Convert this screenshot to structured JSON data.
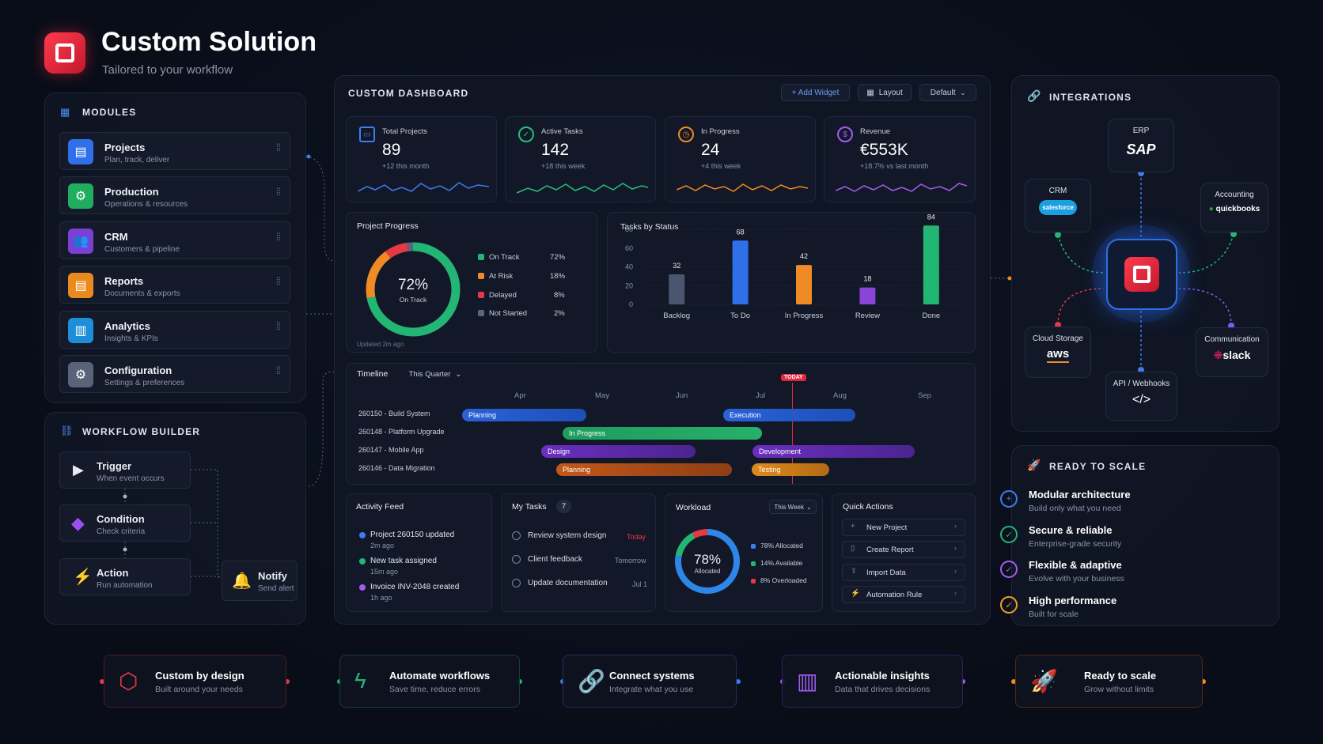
{
  "header": {
    "title": "Custom Solution",
    "subtitle": "Tailored to your workflow"
  },
  "modules": {
    "title": "MODULES",
    "items": [
      {
        "label": "Projects",
        "desc": "Plan, track, deliver"
      },
      {
        "label": "Production",
        "desc": "Operations & resources"
      },
      {
        "label": "CRM",
        "desc": "Customers & pipeline"
      },
      {
        "label": "Reports",
        "desc": "Documents & exports"
      },
      {
        "label": "Analytics",
        "desc": "Insights & KPIs"
      },
      {
        "label": "Configuration",
        "desc": "Settings & preferences"
      }
    ]
  },
  "workflow": {
    "title": "WORKFLOW BUILDER",
    "steps": [
      {
        "label": "Trigger",
        "desc": "When event occurs"
      },
      {
        "label": "Condition",
        "desc": "Check criteria"
      },
      {
        "label": "Action",
        "desc": "Run automation"
      },
      {
        "label": "Notify",
        "desc": "Send alert"
      }
    ]
  },
  "dashboard": {
    "title": "CUSTOM DASHBOARD",
    "add_widget": "+ Add Widget",
    "layout": "Layout",
    "default": "Default",
    "kpis": [
      {
        "label": "Total Projects",
        "value": "89",
        "sub": "+12 this month",
        "color": "#3e7cf0"
      },
      {
        "label": "Active Tasks",
        "value": "142",
        "sub": "+18 this week",
        "color": "#28c07a"
      },
      {
        "label": "In Progress",
        "value": "24",
        "sub": "+4 this week",
        "color": "#f08a24"
      },
      {
        "label": "Revenue",
        "value": "€553K",
        "sub": "+18.7% vs last month",
        "color": "#a45cf0"
      }
    ],
    "progress": {
      "title": "Project Progress",
      "center_value": "72%",
      "center_label": "On Track",
      "updated": "Updated 2m ago",
      "legend": [
        {
          "label": "On Track",
          "value": "72%",
          "color": "#22b573"
        },
        {
          "label": "At Risk",
          "value": "18%",
          "color": "#f08a24"
        },
        {
          "label": "Delayed",
          "value": "8%",
          "color": "#e53946"
        },
        {
          "label": "Not Started",
          "value": "2%",
          "color": "#5a6580"
        }
      ]
    },
    "timeline": {
      "title": "Timeline",
      "range": "This Quarter",
      "today": "TODAY",
      "months": [
        "Apr",
        "May",
        "Jun",
        "Jul",
        "Aug",
        "Sep"
      ],
      "rows": [
        "260150 - Build System",
        "260148 - Platform Upgrade",
        "260147 - Mobile App",
        "260146 - Data Migration"
      ],
      "bars": [
        "Planning",
        "Execution",
        "In Progress",
        "Design",
        "Development",
        "Planning",
        "Testing"
      ]
    },
    "activity": {
      "title": "Activity Feed",
      "items": [
        {
          "text": "Project 260150 updated",
          "when": "2m ago"
        },
        {
          "text": "New task assigned",
          "when": "15m ago"
        },
        {
          "text": "Invoice INV-2048 created",
          "when": "1h ago"
        }
      ]
    },
    "tasks": {
      "title": "My Tasks",
      "count": "7",
      "items": [
        {
          "text": "Review system design",
          "due": "Today"
        },
        {
          "text": "Client feedback",
          "due": "Tomorrow"
        },
        {
          "text": "Update documentation",
          "due": "Jul 1"
        }
      ]
    },
    "workload": {
      "title": "Workload",
      "range": "This Week",
      "center_value": "78%",
      "center_label": "Allocated",
      "legend": [
        "78% Allocated",
        "14% Available",
        "8% Overloaded"
      ]
    },
    "quick": {
      "title": "Quick Actions",
      "items": [
        "New Project",
        "Create Report",
        "Import Data",
        "Automation Rule"
      ]
    }
  },
  "chart_data": {
    "type": "bar",
    "title": "Tasks by Status",
    "categories": [
      "Backlog",
      "To Do",
      "In Progress",
      "Review",
      "Done"
    ],
    "values": [
      32,
      68,
      42,
      18,
      84
    ],
    "ylim": [
      0,
      80
    ],
    "yticks": [
      0,
      20,
      40,
      60,
      80
    ],
    "colors": [
      "#4a5670",
      "#2f6fe8",
      "#f08a24",
      "#8a44d8",
      "#22b573"
    ]
  },
  "integrations": {
    "title": "INTEGRATIONS",
    "nodes": [
      {
        "label": "ERP",
        "logo": "SAP"
      },
      {
        "label": "CRM",
        "logo": "salesforce"
      },
      {
        "label": "Accounting",
        "logo": "quickbooks"
      },
      {
        "label": "Cloud Storage",
        "logo": "aws"
      },
      {
        "label": "Communication",
        "logo": "slack"
      },
      {
        "label": "API / Webhooks",
        "logo": "</>"
      }
    ]
  },
  "scale": {
    "title": "READY TO SCALE",
    "items": [
      {
        "label": "Modular architecture",
        "desc": "Build only what you need"
      },
      {
        "label": "Secure & reliable",
        "desc": "Enterprise-grade security"
      },
      {
        "label": "Flexible & adaptive",
        "desc": "Evolve with your business"
      },
      {
        "label": "High performance",
        "desc": "Built for scale"
      }
    ]
  },
  "features": [
    {
      "label": "Custom by design",
      "desc": "Built around your needs"
    },
    {
      "label": "Automate workflows",
      "desc": "Save time, reduce errors"
    },
    {
      "label": "Connect systems",
      "desc": "Integrate what you use"
    },
    {
      "label": "Actionable insights",
      "desc": "Data that drives decisions"
    },
    {
      "label": "Ready to scale",
      "desc": "Grow without limits"
    }
  ]
}
